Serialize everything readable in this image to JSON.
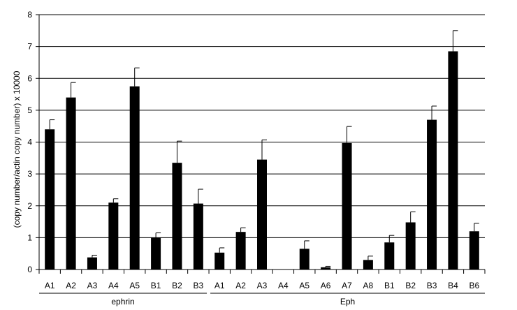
{
  "chart_data": {
    "type": "bar",
    "title": "",
    "xlabel": "",
    "ylabel": "(copy number/actin copy number) x 10000",
    "ylim": [
      0,
      8
    ],
    "yticks": [
      0,
      1,
      2,
      3,
      4,
      5,
      6,
      7,
      8
    ],
    "grid": true,
    "legend": "none",
    "bar_color": "#000000",
    "groups": [
      {
        "label": "ephrin",
        "start": 0,
        "end": 7
      },
      {
        "label": "Eph",
        "start": 8,
        "end": 20
      }
    ],
    "categories": [
      "A1",
      "A2",
      "A3",
      "A4",
      "A5",
      "B1",
      "B2",
      "B3",
      "A1",
      "A2",
      "A3",
      "A4",
      "A5",
      "A6",
      "A7",
      "A8",
      "B1",
      "B2",
      "B3",
      "B4",
      "B6"
    ],
    "values": [
      4.4,
      5.4,
      0.38,
      2.1,
      5.75,
      1.0,
      3.35,
      2.07,
      0.53,
      1.18,
      3.45,
      0.0,
      0.65,
      0.07,
      3.97,
      0.3,
      0.85,
      1.48,
      4.7,
      6.85,
      1.2
    ],
    "errors": [
      0.3,
      0.47,
      0.07,
      0.12,
      0.58,
      0.15,
      0.68,
      0.45,
      0.15,
      0.13,
      0.62,
      0.0,
      0.25,
      0.03,
      0.52,
      0.12,
      0.22,
      0.33,
      0.43,
      0.65,
      0.25
    ]
  }
}
